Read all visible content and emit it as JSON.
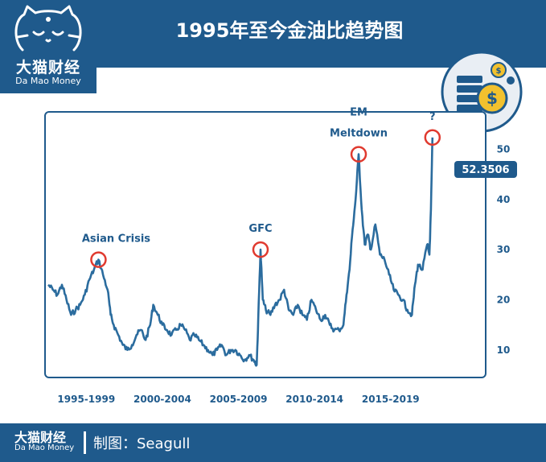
{
  "header": {
    "title": "1995年至今金油比趋势图",
    "logo_cn": "大猫财经",
    "logo_en": "Da Mao Money"
  },
  "footer": {
    "brand_cn": "大猫财经",
    "brand_en": "Da Mao Money",
    "credit": "制图：Seagull"
  },
  "colors": {
    "brand": "#1f5a8c",
    "line": "#2b6c9e",
    "marker": "#e03a2f",
    "coin": "#f2c12e"
  },
  "icons": [
    "cat-logo-icon",
    "coin-stack-icon"
  ],
  "chart_data": {
    "type": "line",
    "title": "1995年至今金油比趋势图",
    "xlabel": "",
    "ylabel": "",
    "x_range": [
      1995,
      2021
    ],
    "ylim": [
      5,
      56
    ],
    "yticks": [
      10,
      20,
      30,
      40,
      50
    ],
    "xtick_labels": [
      {
        "label": "1995-1999",
        "center": 1997.5
      },
      {
        "label": "2000-2004",
        "center": 2002.5
      },
      {
        "label": "2005-2009",
        "center": 2007.5
      },
      {
        "label": "2010-2014",
        "center": 2012.5
      },
      {
        "label": "2015-2019",
        "center": 2017.5
      }
    ],
    "latest_value_label": "52.3506",
    "grid": false,
    "series": [
      {
        "name": "金油比",
        "x": [
          1995.0,
          1995.3,
          1995.6,
          1995.9,
          1996.2,
          1996.5,
          1996.8,
          1997.1,
          1997.4,
          1997.7,
          1998.0,
          1998.3,
          1998.6,
          1998.9,
          1999.1,
          1999.3,
          1999.6,
          1999.9,
          2000.2,
          2000.5,
          2000.8,
          2001.1,
          2001.4,
          2001.7,
          2001.9,
          2002.2,
          2002.5,
          2002.8,
          2003.1,
          2003.4,
          2003.7,
          2004.0,
          2004.3,
          2004.6,
          2004.9,
          2005.2,
          2005.5,
          2005.8,
          2006.1,
          2006.4,
          2006.7,
          2007.0,
          2007.3,
          2007.6,
          2007.9,
          2008.2,
          2008.5,
          2008.7,
          2008.8,
          2008.95,
          2009.1,
          2009.3,
          2009.6,
          2009.9,
          2010.2,
          2010.5,
          2010.8,
          2011.1,
          2011.4,
          2011.7,
          2012.0,
          2012.3,
          2012.6,
          2012.9,
          2013.2,
          2013.5,
          2013.8,
          2014.1,
          2014.4,
          2014.6,
          2014.8,
          2015.0,
          2015.2,
          2015.4,
          2015.6,
          2015.8,
          2016.0,
          2016.2,
          2016.5,
          2016.8,
          2017.1,
          2017.4,
          2017.7,
          2018.0,
          2018.3,
          2018.6,
          2018.9,
          2019.1,
          2019.3,
          2019.6,
          2019.9,
          2020.05,
          2020.15,
          2020.25
        ],
        "values": [
          23,
          22,
          21,
          23,
          20,
          17,
          18,
          19,
          21,
          24,
          26,
          28,
          25,
          22,
          17,
          15,
          13,
          11,
          10,
          11,
          13,
          14,
          12,
          15,
          19,
          17,
          15,
          14,
          13,
          14,
          15,
          14,
          12,
          13,
          12,
          11,
          10,
          9,
          10,
          11,
          9,
          10,
          10,
          9,
          8,
          9,
          8,
          7,
          16,
          30,
          20,
          18,
          17,
          19,
          20,
          22,
          18,
          17,
          19,
          17,
          16,
          20,
          18,
          16,
          17,
          15,
          14,
          14,
          15,
          21,
          26,
          34,
          40,
          49,
          38,
          31,
          33,
          30,
          35,
          29,
          28,
          25,
          22,
          21,
          20,
          18,
          17,
          23,
          27,
          26,
          31,
          29,
          38,
          52.35
        ]
      }
    ],
    "annotations": [
      {
        "text": "Asian Crisis",
        "x": 1998.3,
        "y": 28
      },
      {
        "text": "GFC",
        "x": 2008.95,
        "y": 30
      },
      {
        "text": "EM",
        "x": 2015.4,
        "y": 49
      },
      {
        "text": "Meltdown",
        "x": 2015.4,
        "y": 49
      },
      {
        "text": "?",
        "x": 2020.25,
        "y": 52.35
      }
    ]
  }
}
